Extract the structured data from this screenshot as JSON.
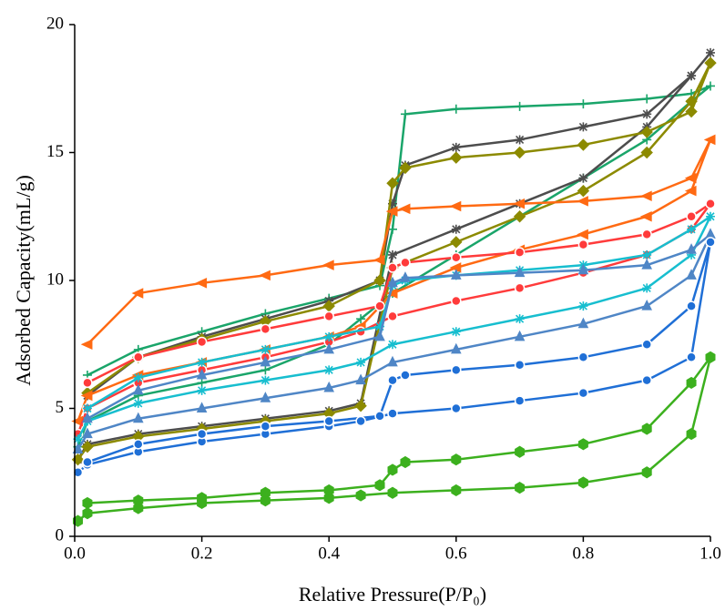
{
  "chart_data": {
    "type": "line",
    "xlabel": "Relative Pressure(P/P₀)",
    "ylabel": "Adsorbed Capacity(mL/g)",
    "xlim": [
      0,
      1
    ],
    "ylim": [
      0,
      20
    ],
    "xticks": [
      {
        "value": 0,
        "label": "0.0"
      },
      {
        "value": 0.2,
        "label": "0.2"
      },
      {
        "value": 0.4,
        "label": "0.4"
      },
      {
        "value": 0.6,
        "label": "0.6"
      },
      {
        "value": 0.8,
        "label": "0.8"
      },
      {
        "value": 1,
        "label": "1.0"
      }
    ],
    "yticks": [
      0,
      5,
      10,
      15,
      20
    ],
    "series": [
      {
        "marker": "plus",
        "color": "#1aa56a",
        "x": [
          0.005,
          0.02,
          0.1,
          0.2,
          0.3,
          0.4,
          0.45,
          0.5,
          0.6,
          0.7,
          0.8,
          0.9,
          0.97,
          1.0,
          0.97,
          0.9,
          0.8,
          0.7,
          0.6,
          0.52,
          0.5,
          0.48,
          0.4,
          0.3,
          0.2,
          0.1,
          0.02
        ],
        "values": [
          3.5,
          4.5,
          5.5,
          6,
          6.5,
          7.5,
          8.5,
          9.5,
          11,
          12.5,
          14,
          15.5,
          17,
          17.6,
          17.3,
          17.1,
          16.9,
          16.8,
          16.7,
          16.5,
          12,
          9.8,
          9.3,
          8.7,
          8,
          7.3,
          6.3
        ]
      },
      {
        "marker": "star",
        "color": "#4d4d4d",
        "x": [
          0.005,
          0.02,
          0.1,
          0.2,
          0.3,
          0.4,
          0.45,
          0.5,
          0.6,
          0.7,
          0.8,
          0.9,
          0.97,
          1.0,
          0.97,
          0.9,
          0.8,
          0.7,
          0.6,
          0.52,
          0.5,
          0.48,
          0.4,
          0.3,
          0.2,
          0.1,
          0.02
        ],
        "values": [
          3,
          3.6,
          4,
          4.3,
          4.6,
          4.9,
          5.2,
          11,
          12,
          13,
          14,
          16,
          18,
          18.9,
          18,
          16.5,
          16,
          15.5,
          15.2,
          14.5,
          13,
          10,
          9.2,
          8.5,
          7.8,
          7,
          5.5
        ]
      },
      {
        "marker": "diamond",
        "color": "#8c8a00",
        "x": [
          0.005,
          0.02,
          0.1,
          0.2,
          0.3,
          0.4,
          0.45,
          0.5,
          0.6,
          0.7,
          0.8,
          0.9,
          0.97,
          1.0,
          0.97,
          0.9,
          0.8,
          0.7,
          0.6,
          0.52,
          0.5,
          0.48,
          0.4,
          0.3,
          0.2,
          0.1,
          0.02
        ],
        "values": [
          3,
          3.5,
          3.9,
          4.2,
          4.5,
          4.8,
          5.1,
          10.5,
          11.5,
          12.5,
          13.5,
          15,
          17,
          18.5,
          16.6,
          15.8,
          15.3,
          15,
          14.8,
          14.4,
          13.8,
          10,
          9,
          8.4,
          7.7,
          7,
          5.6
        ]
      },
      {
        "marker": "tri-left",
        "color": "#ff6a13",
        "x": [
          0.005,
          0.02,
          0.1,
          0.2,
          0.3,
          0.4,
          0.45,
          0.5,
          0.6,
          0.7,
          0.8,
          0.9,
          0.97,
          1.0,
          0.97,
          0.9,
          0.8,
          0.7,
          0.6,
          0.52,
          0.5,
          0.48,
          0.4,
          0.3,
          0.2,
          0.1,
          0.02
        ],
        "values": [
          4.5,
          5.5,
          6.3,
          6.8,
          7.3,
          7.8,
          8.2,
          9.5,
          10.5,
          11.2,
          11.8,
          12.5,
          13.5,
          15.5,
          14,
          13.3,
          13.1,
          13,
          12.9,
          12.8,
          12.7,
          10.8,
          10.6,
          10.2,
          9.9,
          9.5,
          7.5
        ]
      },
      {
        "marker": "circle",
        "color": "#ff3b3b",
        "x": [
          0.005,
          0.02,
          0.1,
          0.2,
          0.3,
          0.4,
          0.45,
          0.5,
          0.6,
          0.7,
          0.8,
          0.9,
          0.97,
          1.0,
          0.97,
          0.9,
          0.8,
          0.7,
          0.6,
          0.52,
          0.5,
          0.48,
          0.4,
          0.3,
          0.2,
          0.1,
          0.02
        ],
        "values": [
          4,
          5,
          6,
          6.5,
          7,
          7.6,
          8,
          8.6,
          9.2,
          9.7,
          10.3,
          11,
          12,
          13,
          12.5,
          11.8,
          11.4,
          11.1,
          10.9,
          10.7,
          10.5,
          9,
          8.6,
          8.1,
          7.6,
          7,
          6
        ]
      },
      {
        "marker": "star",
        "color": "#17becf",
        "x": [
          0.005,
          0.02,
          0.1,
          0.2,
          0.3,
          0.4,
          0.45,
          0.5,
          0.6,
          0.7,
          0.8,
          0.9,
          0.97,
          1.0,
          0.97,
          0.9,
          0.8,
          0.7,
          0.6,
          0.52,
          0.5,
          0.48,
          0.4,
          0.3,
          0.2,
          0.1,
          0.02
        ],
        "values": [
          3.8,
          4.5,
          5.2,
          5.7,
          6.1,
          6.5,
          6.8,
          7.5,
          8,
          8.5,
          9,
          9.7,
          11,
          12.5,
          12,
          11,
          10.6,
          10.4,
          10.2,
          10,
          9.8,
          8.2,
          7.8,
          7.3,
          6.8,
          6.2,
          5
        ]
      },
      {
        "marker": "tri-up",
        "color": "#4f86c6",
        "x": [
          0.005,
          0.02,
          0.1,
          0.2,
          0.3,
          0.4,
          0.45,
          0.5,
          0.6,
          0.7,
          0.8,
          0.9,
          0.97,
          1.0,
          0.97,
          0.9,
          0.8,
          0.7,
          0.6,
          0.52,
          0.5,
          0.48,
          0.4,
          0.3,
          0.2,
          0.1,
          0.02
        ],
        "values": [
          3.4,
          4,
          4.6,
          5,
          5.4,
          5.8,
          6.1,
          6.8,
          7.3,
          7.8,
          8.3,
          9,
          10.2,
          11.8,
          11.2,
          10.6,
          10.4,
          10.3,
          10.2,
          10.1,
          9.9,
          7.8,
          7.3,
          6.8,
          6.3,
          5.7,
          4.6
        ]
      },
      {
        "marker": "circle",
        "color": "#1f6fd6",
        "x": [
          0.005,
          0.02,
          0.1,
          0.2,
          0.3,
          0.4,
          0.45,
          0.5,
          0.6,
          0.7,
          0.8,
          0.9,
          0.97,
          1.0,
          0.97,
          0.9,
          0.8,
          0.7,
          0.6,
          0.52,
          0.5,
          0.48,
          0.4,
          0.3,
          0.2,
          0.1,
          0.02
        ],
        "values": [
          2.5,
          2.8,
          3.3,
          3.7,
          4,
          4.3,
          4.5,
          4.8,
          5,
          5.3,
          5.6,
          6.1,
          7,
          11.5,
          9,
          7.5,
          7,
          6.7,
          6.5,
          6.3,
          6.1,
          4.7,
          4.5,
          4.3,
          4,
          3.6,
          2.9
        ]
      },
      {
        "marker": "hexagon",
        "color": "#3cb01e",
        "x": [
          0.005,
          0.02,
          0.1,
          0.2,
          0.3,
          0.4,
          0.45,
          0.5,
          0.6,
          0.7,
          0.8,
          0.9,
          0.97,
          1.0,
          0.97,
          0.9,
          0.8,
          0.7,
          0.6,
          0.52,
          0.5,
          0.48,
          0.4,
          0.3,
          0.2,
          0.1,
          0.02
        ],
        "values": [
          0.6,
          0.9,
          1.1,
          1.3,
          1.4,
          1.5,
          1.6,
          1.7,
          1.8,
          1.9,
          2.1,
          2.5,
          4,
          7,
          6,
          4.2,
          3.6,
          3.3,
          3,
          2.9,
          2.6,
          2,
          1.8,
          1.7,
          1.5,
          1.4,
          1.3
        ]
      }
    ]
  }
}
